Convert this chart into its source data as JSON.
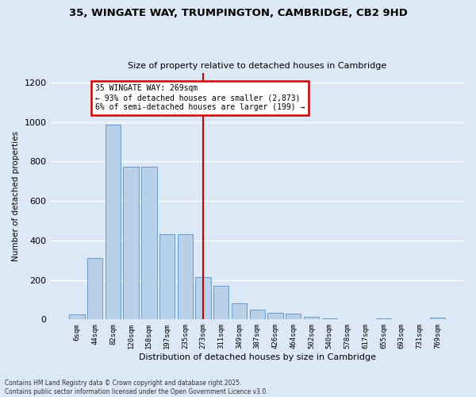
{
  "title1": "35, WINGATE WAY, TRUMPINGTON, CAMBRIDGE, CB2 9HD",
  "title2": "Size of property relative to detached houses in Cambridge",
  "xlabel": "Distribution of detached houses by size in Cambridge",
  "ylabel": "Number of detached properties",
  "categories": [
    "6sqm",
    "44sqm",
    "82sqm",
    "120sqm",
    "158sqm",
    "197sqm",
    "235sqm",
    "273sqm",
    "311sqm",
    "349sqm",
    "387sqm",
    "426sqm",
    "464sqm",
    "502sqm",
    "540sqm",
    "578sqm",
    "617sqm",
    "655sqm",
    "693sqm",
    "731sqm",
    "769sqm"
  ],
  "values": [
    25,
    310,
    985,
    775,
    775,
    430,
    430,
    215,
    170,
    80,
    50,
    32,
    28,
    13,
    5,
    3,
    2,
    5,
    2,
    1,
    10
  ],
  "bar_color": "#b8d0e8",
  "bar_edge_color": "#6699cc",
  "background_color": "#dce8f5",
  "grid_color": "#ffffff",
  "vline_x": 7.0,
  "vline_color": "#cc0000",
  "annotation_text": "35 WINGATE WAY: 269sqm\n← 93% of detached houses are smaller (2,873)\n6% of semi-detached houses are larger (199) →",
  "annotation_box_color": "#ffffff",
  "annotation_box_edge": "#cc0000",
  "ylim": [
    0,
    1250
  ],
  "yticks": [
    0,
    200,
    400,
    600,
    800,
    1000,
    1200
  ],
  "footer1": "Contains HM Land Registry data © Crown copyright and database right 2025.",
  "footer2": "Contains public sector information licensed under the Open Government Licence v3.0."
}
